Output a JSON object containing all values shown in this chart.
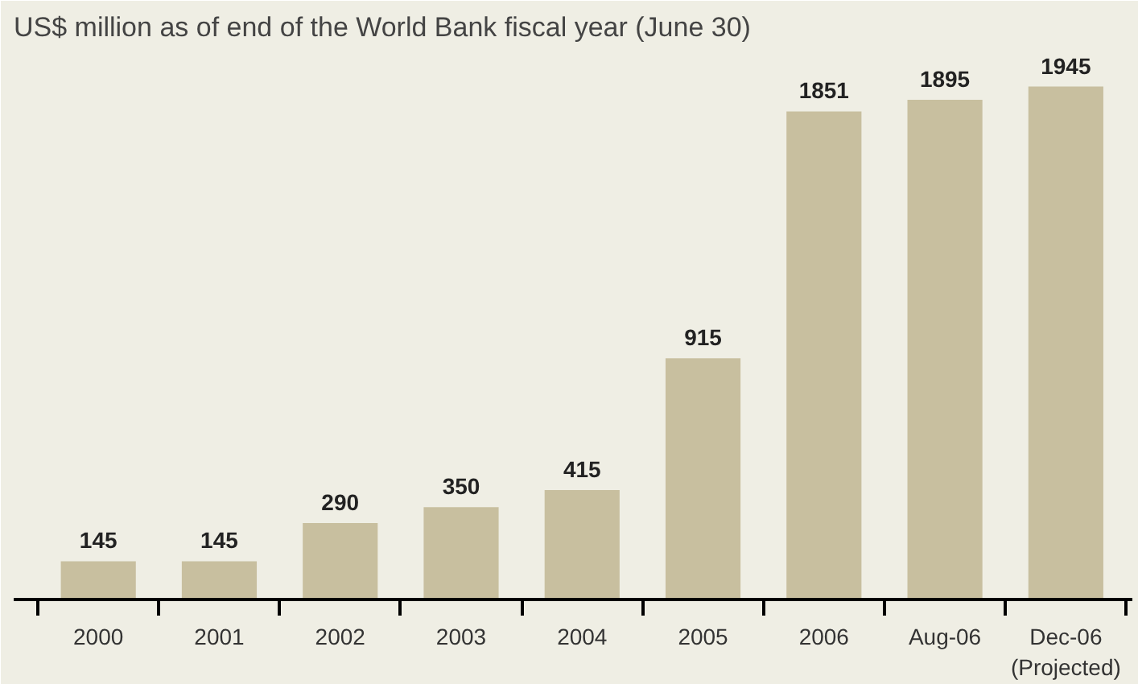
{
  "chart_data": {
    "type": "bar",
    "subtitle": "US$ million as of end of the World Bank fiscal year (June 30)",
    "categories": [
      "2000",
      "2001",
      "2002",
      "2003",
      "2004",
      "2005",
      "2006",
      "Aug-06",
      "Dec-06\n(Projected)"
    ],
    "values": [
      145,
      145,
      290,
      350,
      415,
      915,
      1851,
      1895,
      1945
    ],
    "color": "#c8bf9f",
    "data_labels": true
  }
}
